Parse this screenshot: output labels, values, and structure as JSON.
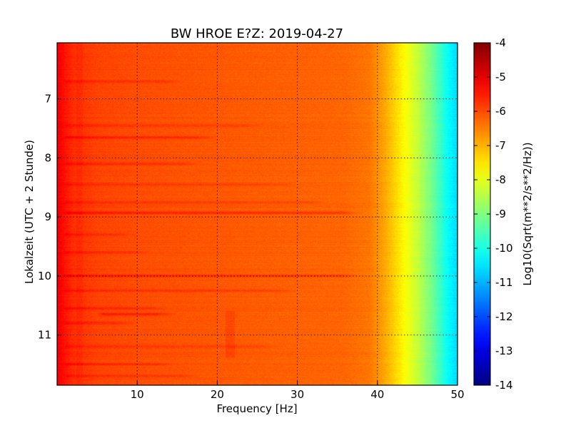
{
  "chart_data": {
    "type": "heatmap",
    "title": "BW HROE E?Z: 2019-04-27",
    "xlabel": "Frequency [Hz]",
    "ylabel": "Lokalzeit (UTC + 2 Stunde)",
    "xlim": [
      0,
      50
    ],
    "ylim": [
      11.85,
      6.05
    ],
    "x_ticks": [
      10,
      20,
      30,
      40,
      50
    ],
    "y_ticks": [
      7,
      8,
      9,
      10,
      11
    ],
    "grid": true,
    "colorbar": {
      "label": "Log10(Sqrt(m**2/s**2/Hz))",
      "range": [
        -14,
        -4
      ],
      "ticks": [
        -4,
        -5,
        -6,
        -7,
        -8,
        -9,
        -10,
        -11,
        -12,
        -13,
        -14
      ],
      "colormap": "jet"
    },
    "spectral_profile": {
      "frequency_hz": [
        0,
        0.8,
        2,
        5,
        10,
        20,
        30,
        36,
        39,
        41,
        43,
        45,
        47,
        49,
        50
      ],
      "log_amplitude": [
        -5.1,
        -5.4,
        -5.7,
        -5.9,
        -6.0,
        -6.1,
        -6.2,
        -6.25,
        -6.4,
        -6.9,
        -7.6,
        -8.3,
        -9.2,
        -10.3,
        -10.6
      ]
    },
    "stripes": [
      {
        "time_h": 6.7,
        "f_start": 0.6,
        "f_end": 16,
        "strength": 0.35
      },
      {
        "time_h": 7.45,
        "f_start": 0.6,
        "f_end": 26,
        "strength": 0.25
      },
      {
        "time_h": 7.65,
        "f_start": 0.6,
        "f_end": 20,
        "strength": 0.45
      },
      {
        "time_h": 8.1,
        "f_start": 0.6,
        "f_end": 18,
        "strength": 0.35
      },
      {
        "time_h": 8.45,
        "f_start": 0.6,
        "f_end": 30,
        "strength": 0.25
      },
      {
        "time_h": 8.75,
        "f_start": 0.6,
        "f_end": 34,
        "strength": 0.3
      },
      {
        "time_h": 8.93,
        "f_start": 0.6,
        "f_end": 38,
        "strength": 0.55
      },
      {
        "time_h": 9.3,
        "f_start": 0.6,
        "f_end": 10,
        "strength": 0.3
      },
      {
        "time_h": 9.6,
        "f_start": 0.6,
        "f_end": 12,
        "strength": 0.3
      },
      {
        "time_h": 10.0,
        "f_start": 0.6,
        "f_end": 38,
        "strength": 0.5
      },
      {
        "time_h": 10.25,
        "f_start": 0.6,
        "f_end": 30,
        "strength": 0.35
      },
      {
        "time_h": 10.55,
        "f_start": 0.6,
        "f_end": 14,
        "strength": 0.35
      },
      {
        "time_h": 10.65,
        "f_start": 5,
        "f_end": 15,
        "strength": 0.55
      },
      {
        "time_h": 10.8,
        "f_start": 0.6,
        "f_end": 10,
        "strength": 0.35
      },
      {
        "time_h": 11.2,
        "f_start": 0.6,
        "f_end": 28,
        "strength": 0.3
      },
      {
        "time_h": 11.5,
        "f_start": 0.6,
        "f_end": 15,
        "strength": 0.35
      },
      {
        "time_h": 11.7,
        "f_start": 0.6,
        "f_end": 18,
        "strength": 0.3
      }
    ]
  }
}
